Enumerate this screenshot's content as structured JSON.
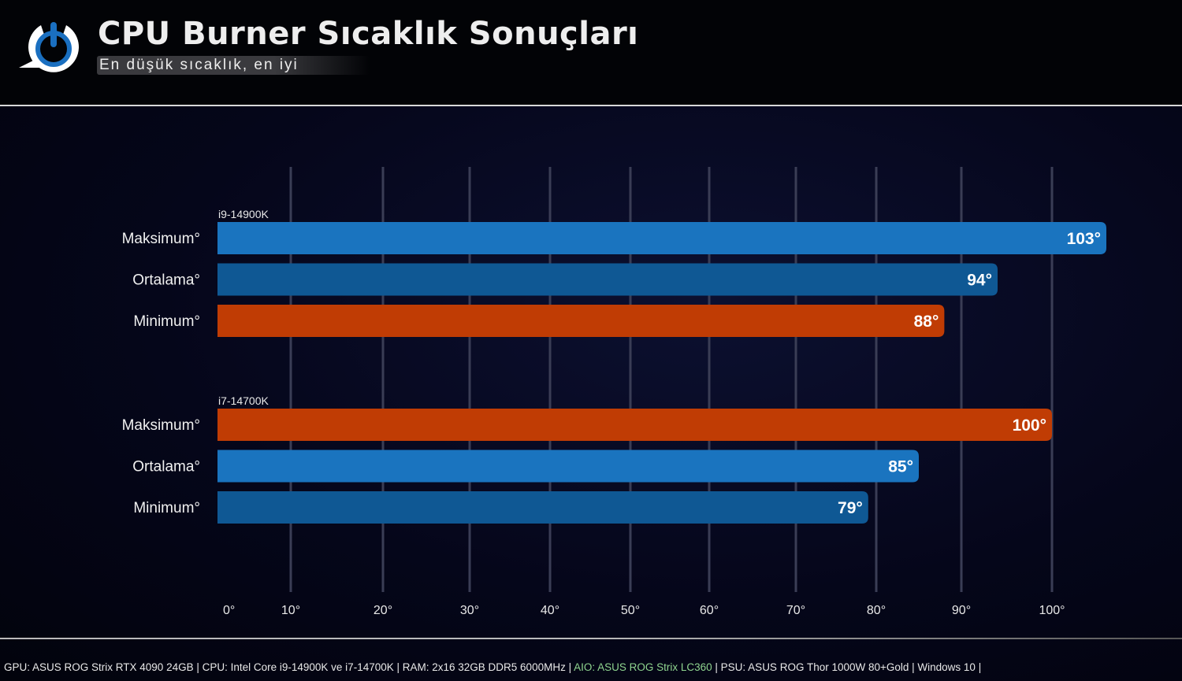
{
  "header": {
    "title": "CPU Burner Sıcaklık Sonuçları",
    "subtitle": "En düşük sıcaklık, en iyi",
    "logo_icon": "power-icon"
  },
  "footer": {
    "part1": "GPU: ASUS ROG Strix RTX 4090 24GB | CPU: Intel Core i9-14900K ve i7-14700K | RAM: 2x16 32GB DDR5 6000MHz | ",
    "aio": "AIO: ASUS ROG Strix LC360",
    "part2": " | PSU: ASUS ROG Thor 1000W 80+Gold  | Windows 10 |"
  },
  "chart_data": {
    "type": "bar",
    "orientation": "horizontal",
    "xlim": [
      0,
      100
    ],
    "x_ticks": [
      "0°",
      "10°",
      "20°",
      "30°",
      "40°",
      "50°",
      "60°",
      "70°",
      "80°",
      "90°",
      "100°"
    ],
    "grid": true,
    "colors": {
      "blue": "#1a74bf",
      "dark_blue": "#0f5894",
      "orange": "#c03c04"
    },
    "groups": [
      {
        "name": "i9-14900K",
        "bars": [
          {
            "label": "Maksimum°",
            "value": 103,
            "value_label": "103°",
            "color": "blue"
          },
          {
            "label": "Ortalama°",
            "value": 94,
            "value_label": "94°",
            "color": "dark_blue"
          },
          {
            "label": "Minimum°",
            "value": 88,
            "value_label": "88°",
            "color": "orange"
          }
        ]
      },
      {
        "name": "i7-14700K",
        "bars": [
          {
            "label": "Maksimum°",
            "value": 100,
            "value_label": "100°",
            "color": "orange"
          },
          {
            "label": "Ortalama°",
            "value": 85,
            "value_label": "85°",
            "color": "blue"
          },
          {
            "label": "Minimum°",
            "value": 79,
            "value_label": "79°",
            "color": "dark_blue"
          }
        ]
      }
    ]
  }
}
